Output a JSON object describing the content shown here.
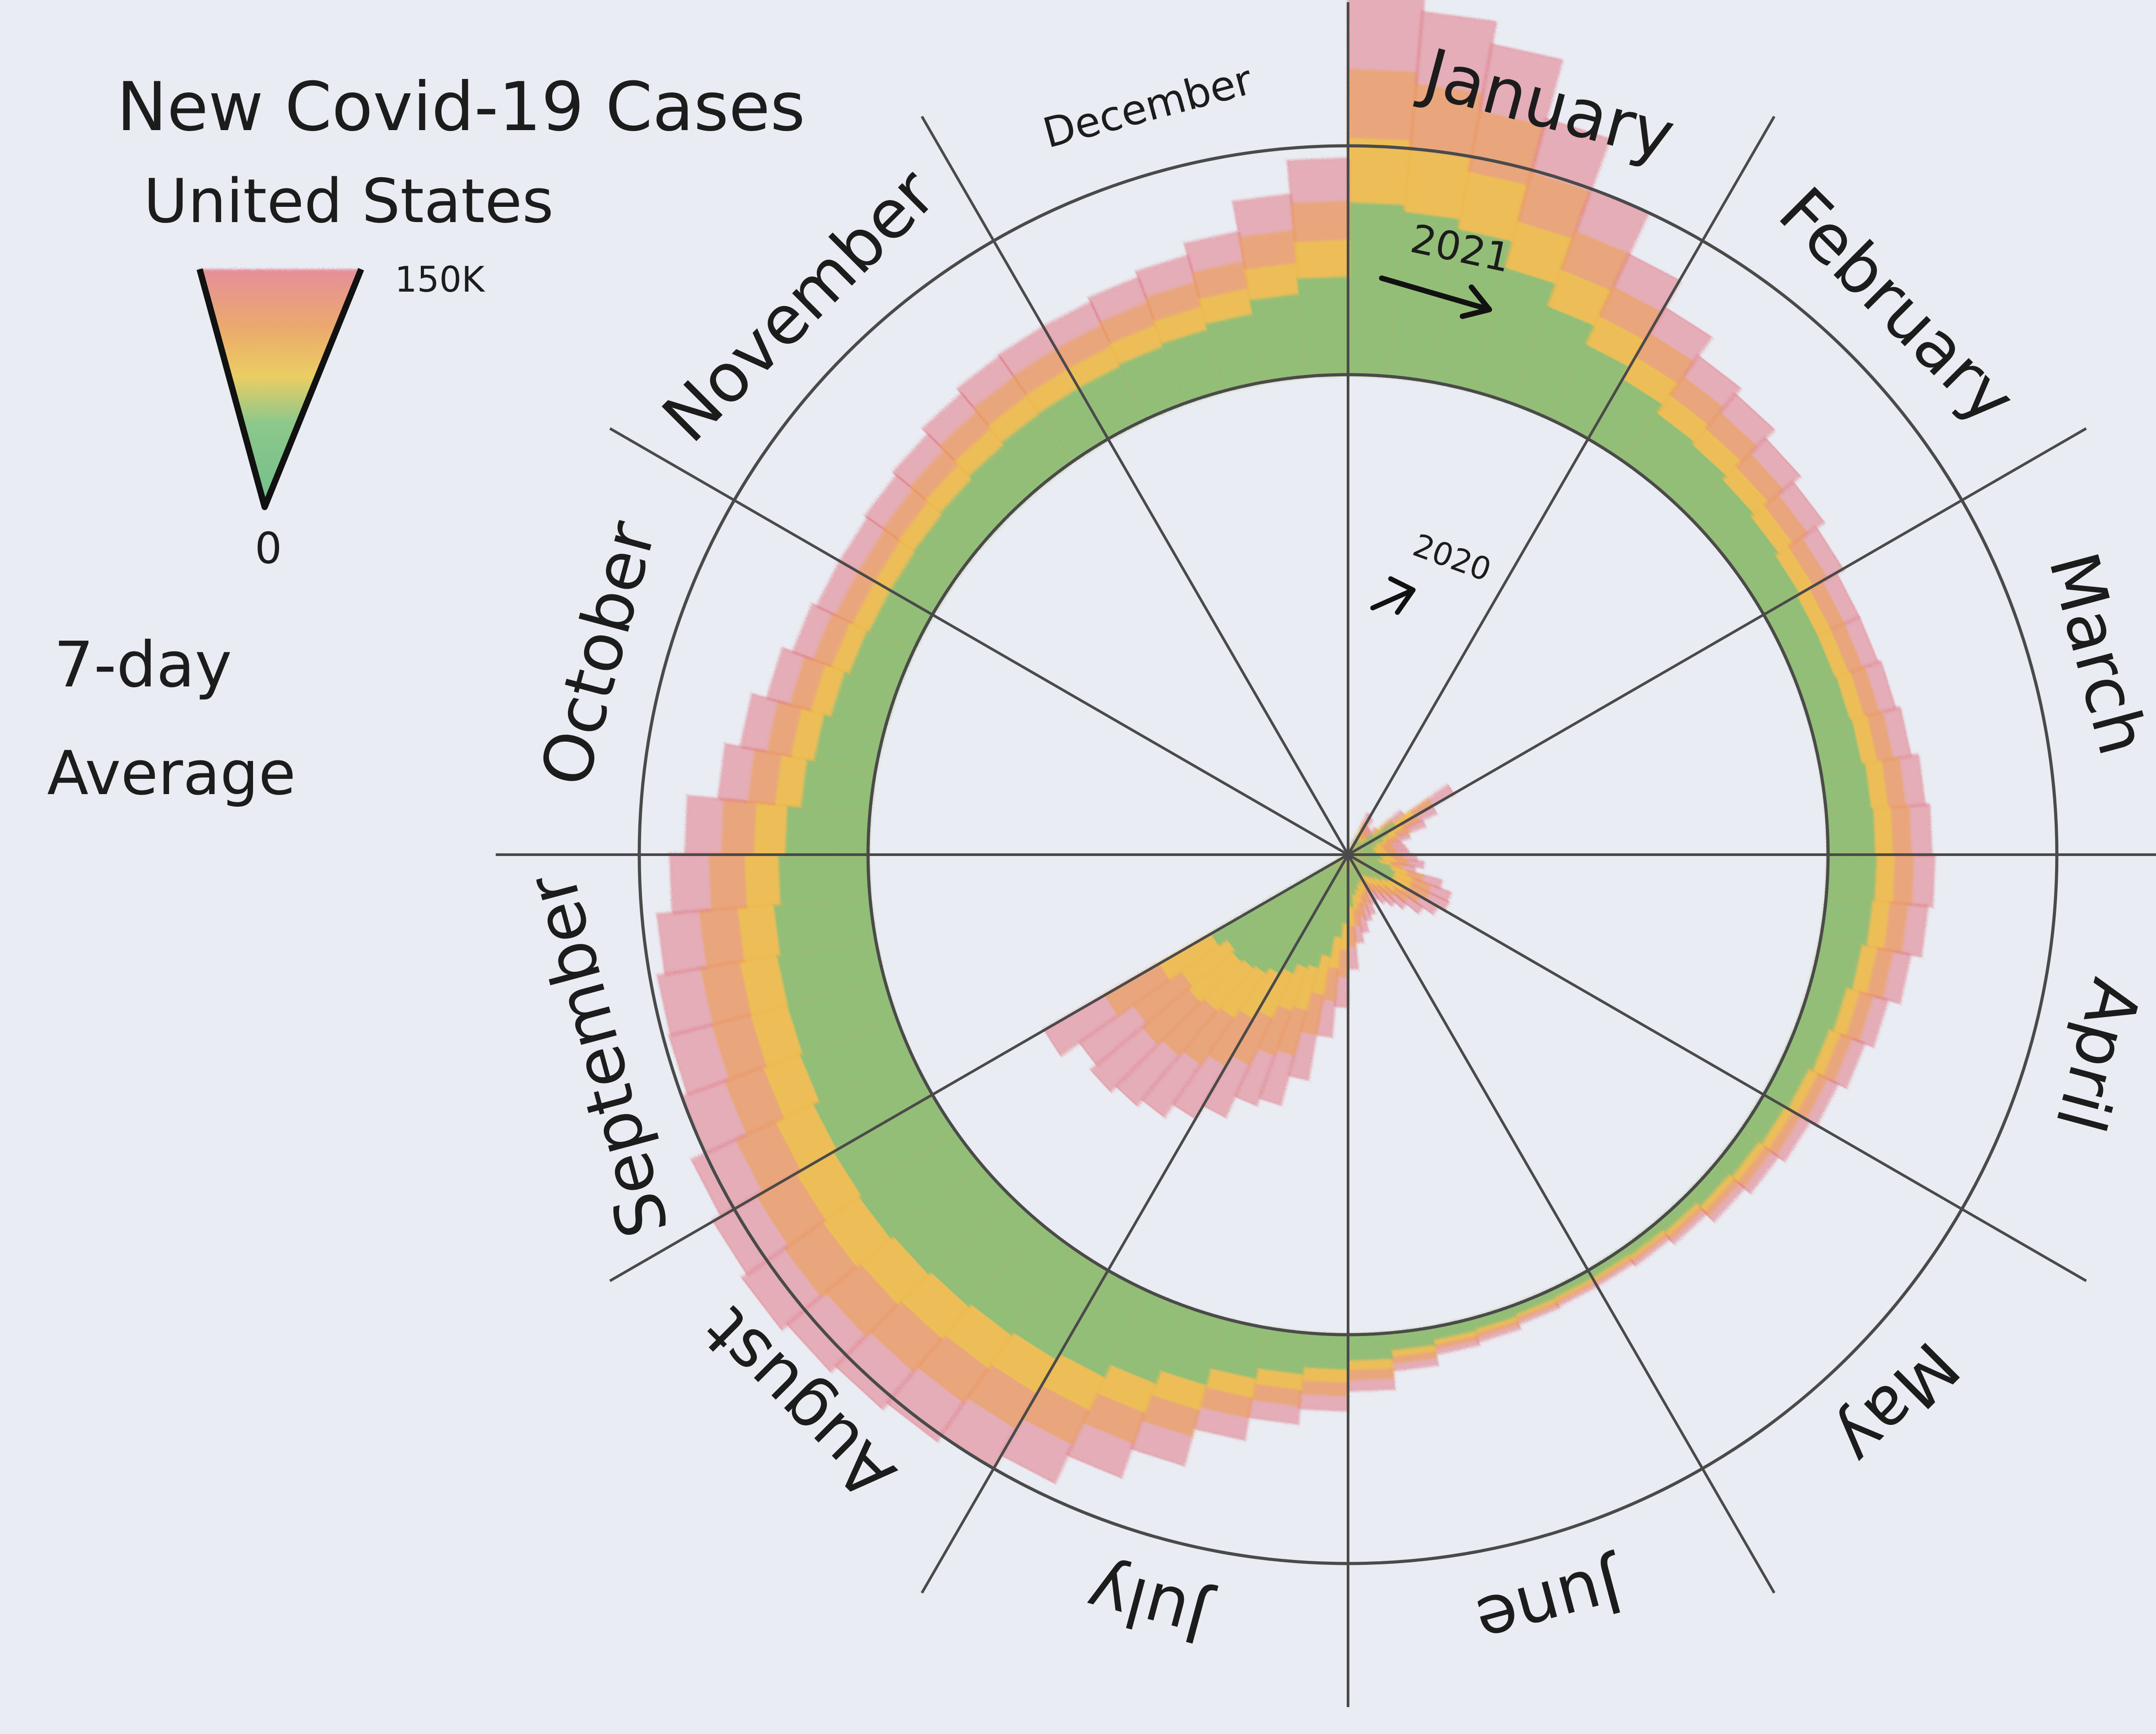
{
  "chart_data": {
    "type": "radial-area",
    "title_line1": "New Covid-19 Cases",
    "title_line2": "United States",
    "subtitle_line1": "7-day",
    "subtitle_line2": "Average",
    "legend": {
      "max_label": "150K",
      "min_label": "0"
    },
    "months": [
      "January",
      "February",
      "March",
      "April",
      "May",
      "June",
      "July",
      "August",
      "September",
      "October",
      "November",
      "December"
    ],
    "year_labels": [
      "2020",
      "2021"
    ],
    "scale_max": 150000,
    "series": [
      {
        "name": "2020",
        "values": [
          0,
          20,
          20,
          500,
          10000,
          30000,
          28000,
          22000,
          21000,
          25000,
          45000,
          80000,
          64000,
          54000,
          42000,
          36000,
          38000,
          40000,
          45000,
          50000,
          45000,
          64000,
          72000,
          73000,
          68000,
          60000,
          50000,
          44000,
          39000,
          35000,
          36000,
          42000,
          45000,
          52000,
          58000,
          75000,
          100000,
          120000,
          150000,
          170000,
          175000,
          190000,
          200000,
          210000,
          215000,
          220000,
          215000,
          230000
        ]
      },
      {
        "name": "2021",
        "values": [
          250000,
          240000,
          225000,
          185000,
          150000,
          120000,
          100000,
          85000,
          80000,
          72000,
          66000,
          60000,
          55000,
          55000,
          57000,
          60000,
          65000,
          68000,
          70000,
          67000,
          60000,
          52000,
          46000,
          40000,
          35000,
          30000,
          25000,
          18000,
          14000,
          12000,
          12000,
          13000,
          16000,
          18000,
          25000,
          37000,
          50000,
          60000,
          75000,
          100000,
          120000,
          140000,
          150000,
          155000,
          160000,
          165000,
          170000,
          166000,
          160000,
          150000,
          146000,
          145000,
          140000,
          130000,
          120000,
          100000,
          90000,
          80000,
          73000,
          70000,
          70000,
          72000,
          75000,
          80000,
          84000,
          85000,
          85000,
          88000,
          92000,
          100000,
          120000,
          142000
        ]
      }
    ],
    "colors": {
      "green": "#6cbf84",
      "yellow": "#eecb45",
      "orange": "#eda256",
      "red": "#e07a86",
      "pencil": "#4a4a4a"
    }
  }
}
